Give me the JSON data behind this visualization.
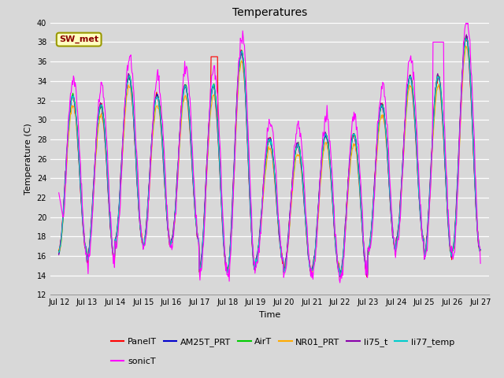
{
  "title": "Temperatures",
  "ylabel": "Temperature (C)",
  "xlabel": "Time",
  "annotation": "SW_met",
  "ylim": [
    12,
    40
  ],
  "series_colors": {
    "PanelT": "#ff0000",
    "AM25T_PRT": "#0000cc",
    "AirT": "#00cc00",
    "NR01_PRT": "#ffaa00",
    "li75_t": "#8800aa",
    "li77_temp": "#00cccc",
    "sonicT": "#ff00ff"
  },
  "series_order": [
    "PanelT",
    "AM25T_PRT",
    "AirT",
    "NR01_PRT",
    "li75_t",
    "li77_temp",
    "sonicT"
  ],
  "x_ticks": [
    "Jul 12",
    "Jul 13",
    "Jul 14",
    "Jul 15",
    "Jul 16",
    "Jul 17",
    "Jul 18",
    "Jul 19",
    "Jul 20",
    "Jul 21",
    "Jul 22",
    "Jul 23",
    "Jul 24",
    "Jul 25",
    "Jul 26",
    "Jul 27"
  ],
  "background_color": "#d8d8d8",
  "plot_background": "#d8d8d8",
  "fig_background": "#d8d8d8",
  "n_points": 721,
  "title_fontsize": 10,
  "axis_label_fontsize": 8,
  "tick_fontsize": 7,
  "legend_fontsize": 8
}
